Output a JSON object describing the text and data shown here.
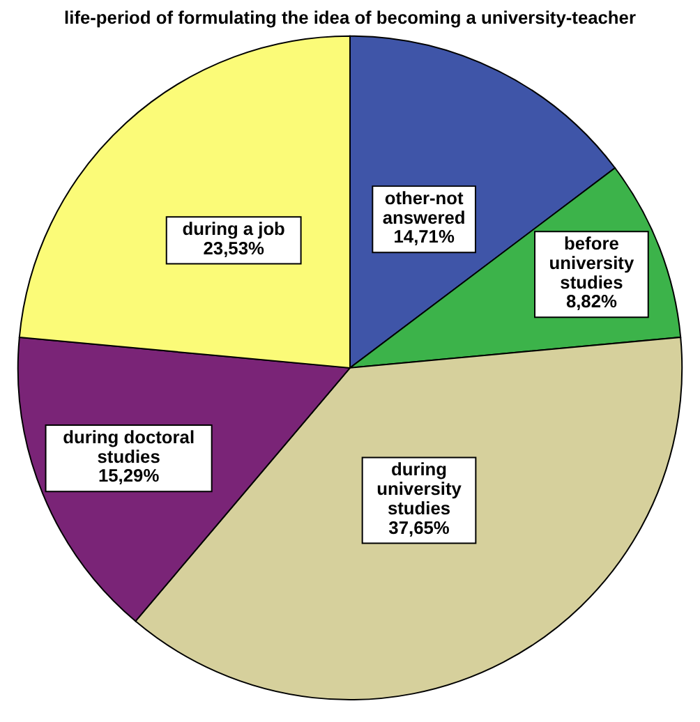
{
  "chart_data": {
    "type": "pie",
    "title": "life-period of formulating the idea of becoming a university-teacher",
    "categories": [
      "other-not answered",
      "before university studies",
      "during university studies",
      "during doctoral studies",
      "during a job"
    ],
    "values": [
      14.71,
      8.82,
      37.65,
      15.29,
      23.53
    ],
    "value_labels": [
      "14,71%",
      "8,82%",
      "37,65%",
      "15,29%",
      "23,53%"
    ],
    "colors": [
      "#3f55a8",
      "#3cb34a",
      "#d6d09c",
      "#7a2477",
      "#fbfb78"
    ]
  }
}
